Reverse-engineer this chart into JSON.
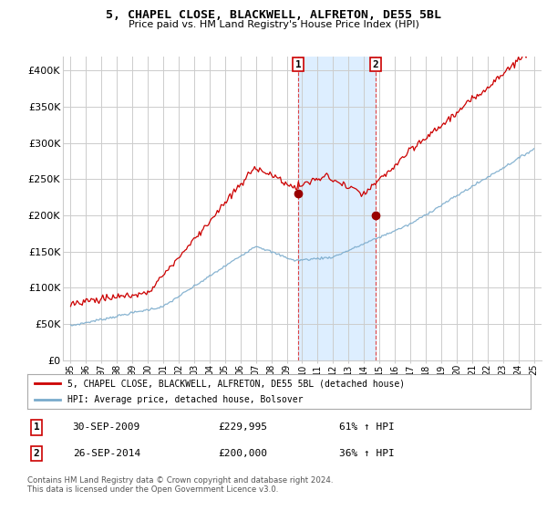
{
  "title": "5, CHAPEL CLOSE, BLACKWELL, ALFRETON, DE55 5BL",
  "subtitle": "Price paid vs. HM Land Registry's House Price Index (HPI)",
  "legend_label_red": "5, CHAPEL CLOSE, BLACKWELL, ALFRETON, DE55 5BL (detached house)",
  "legend_label_blue": "HPI: Average price, detached house, Bolsover",
  "transaction1_date": "30-SEP-2009",
  "transaction1_price": "£229,995",
  "transaction1_hpi": "61% ↑ HPI",
  "transaction2_date": "26-SEP-2014",
  "transaction2_price": "£200,000",
  "transaction2_hpi": "36% ↑ HPI",
  "footnote": "Contains HM Land Registry data © Crown copyright and database right 2024.\nThis data is licensed under the Open Government Licence v3.0.",
  "red_color": "#cc0000",
  "blue_color": "#7aabcc",
  "shade_color": "#ddeeff",
  "dashed_color": "#dd4444",
  "grid_color": "#cccccc",
  "background_color": "#ffffff",
  "ylim": [
    0,
    420000
  ],
  "yticks": [
    0,
    50000,
    100000,
    150000,
    200000,
    250000,
    300000,
    350000,
    400000
  ],
  "ytick_labels": [
    "£0",
    "£50K",
    "£100K",
    "£150K",
    "£200K",
    "£250K",
    "£300K",
    "£350K",
    "£400K"
  ],
  "transaction1_year": 2009.75,
  "transaction2_year": 2014.75,
  "marker1_price_paid": 229995,
  "marker2_price_paid": 200000
}
